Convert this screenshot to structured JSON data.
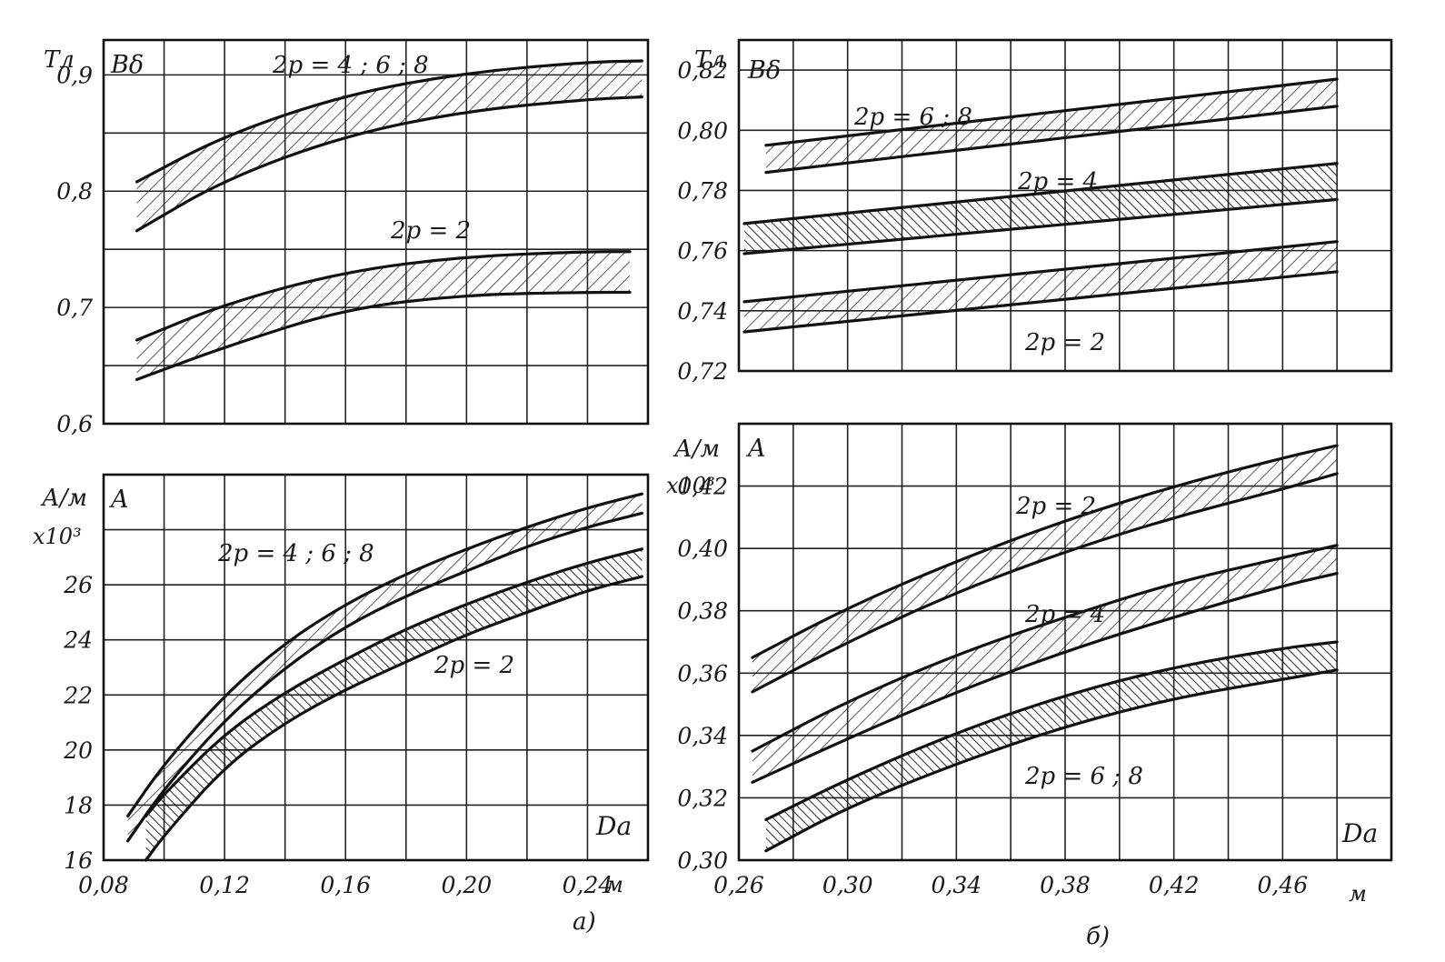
{
  "figure": {
    "label_a": "а)",
    "label_b": "б)"
  },
  "chart_data": [
    {
      "id": "a_top",
      "type": "area",
      "panel": "а",
      "title": "Bδ",
      "ylabel": "Тл",
      "ylim": [
        0.6,
        0.93
      ],
      "xlim": [
        0.08,
        0.26
      ],
      "x_ticks": [
        0.08,
        0.1,
        0.12,
        0.14,
        0.16,
        0.18,
        0.2,
        0.22,
        0.24,
        0.26
      ],
      "y_ticks": [
        0.6,
        0.65,
        0.7,
        0.75,
        0.8,
        0.85,
        0.9
      ],
      "y_tick_labels": [
        "0,6",
        "",
        "0,7",
        "",
        "0,8",
        "",
        "0,9"
      ],
      "x_tick_labels": [],
      "hatch": "diagonal",
      "series": [
        {
          "name": "2p=4;6;8",
          "x": [
            0.091,
            0.12,
            0.16,
            0.2,
            0.24,
            0.258
          ],
          "upper": [
            0.808,
            0.848,
            0.883,
            0.902,
            0.911,
            0.912
          ],
          "lower": [
            0.766,
            0.81,
            0.848,
            0.869,
            0.879,
            0.881
          ]
        },
        {
          "name": "2p=2",
          "x": [
            0.091,
            0.12,
            0.16,
            0.2,
            0.24,
            0.254
          ],
          "upper": [
            0.672,
            0.703,
            0.731,
            0.744,
            0.748,
            0.748
          ],
          "lower": [
            0.638,
            0.666,
            0.699,
            0.711,
            0.713,
            0.713
          ]
        }
      ]
    },
    {
      "id": "a_bottom",
      "type": "area",
      "panel": "а",
      "title": "A",
      "ylabel": "А/м",
      "yunit": "x10³",
      "xlabel": "Da",
      "xunit": "м",
      "ylim": [
        16,
        30
      ],
      "xlim": [
        0.08,
        0.26
      ],
      "x_ticks": [
        0.08,
        0.1,
        0.12,
        0.14,
        0.16,
        0.18,
        0.2,
        0.22,
        0.24,
        0.26
      ],
      "x_tick_labels": [
        "0,08",
        "",
        "0,12",
        "",
        "0,16",
        "",
        "0,20",
        "",
        "0,24",
        ""
      ],
      "y_ticks": [
        16,
        18,
        20,
        22,
        24,
        26,
        28,
        30
      ],
      "y_tick_labels": [
        "16",
        "18",
        "20",
        "22",
        "24",
        "26",
        "",
        ""
      ],
      "series": [
        {
          "name": "2p=4;6;8",
          "hatch": "diagonal",
          "x": [
            0.088,
            0.1,
            0.12,
            0.14,
            0.16,
            0.18,
            0.2,
            0.22,
            0.24,
            0.258
          ],
          "upper": [
            17.6,
            19.5,
            22.0,
            23.9,
            25.3,
            26.4,
            27.3,
            28.1,
            28.8,
            29.3
          ],
          "lower": [
            16.7,
            18.6,
            21.1,
            23.0,
            24.5,
            25.6,
            26.5,
            27.4,
            28.1,
            28.6
          ]
        },
        {
          "name": "2p=2",
          "hatch": "vertical",
          "x": [
            0.094,
            0.1,
            0.12,
            0.14,
            0.16,
            0.18,
            0.2,
            0.22,
            0.24,
            0.258
          ],
          "upper": [
            17.6,
            18.4,
            20.6,
            22.1,
            23.3,
            24.4,
            25.3,
            26.1,
            26.8,
            27.3
          ],
          "lower": [
            16.0,
            16.9,
            19.4,
            21.0,
            22.2,
            23.2,
            24.2,
            25.0,
            25.8,
            26.3
          ]
        }
      ]
    },
    {
      "id": "b_top",
      "type": "area",
      "panel": "б",
      "title": "Bδ",
      "ylabel": "Тл",
      "ylim": [
        0.72,
        0.83
      ],
      "xlim": [
        0.26,
        0.5
      ],
      "x_ticks": [
        0.26,
        0.28,
        0.3,
        0.32,
        0.34,
        0.36,
        0.38,
        0.4,
        0.42,
        0.44,
        0.46,
        0.48,
        0.5
      ],
      "x_tick_labels": [],
      "y_ticks": [
        0.72,
        0.74,
        0.76,
        0.78,
        0.8,
        0.82
      ],
      "y_tick_labels": [
        "0,72",
        "0,74",
        "0,76",
        "0,78",
        "0,80",
        "0,82"
      ],
      "series": [
        {
          "name": "2p=6;8",
          "hatch": "diagonal",
          "x": [
            0.27,
            0.48
          ],
          "upper": [
            0.795,
            0.817
          ],
          "lower": [
            0.786,
            0.808
          ]
        },
        {
          "name": "2p=4",
          "hatch": "vertical",
          "x": [
            0.262,
            0.48
          ],
          "upper": [
            0.769,
            0.789
          ],
          "lower": [
            0.759,
            0.777
          ]
        },
        {
          "name": "2p=2",
          "hatch": "diagonal",
          "x": [
            0.262,
            0.48
          ],
          "upper": [
            0.743,
            0.763
          ],
          "lower": [
            0.733,
            0.753
          ]
        }
      ]
    },
    {
      "id": "b_bottom",
      "type": "area",
      "panel": "б",
      "title": "A",
      "ylabel": "А/м",
      "yunit": "x10³",
      "xlabel": "Da",
      "xunit": "м",
      "ylim": [
        0.3,
        0.44
      ],
      "xlim": [
        0.26,
        0.5
      ],
      "x_ticks": [
        0.26,
        0.28,
        0.3,
        0.32,
        0.34,
        0.36,
        0.38,
        0.4,
        0.42,
        0.44,
        0.46,
        0.48,
        0.5
      ],
      "x_tick_labels": [
        "0,26",
        "",
        "0,30",
        "",
        "0,34",
        "",
        "0,38",
        "",
        "0,42",
        "",
        "0,46",
        "",
        ""
      ],
      "y_ticks": [
        0.3,
        0.32,
        0.34,
        0.36,
        0.38,
        0.4,
        0.42,
        0.44
      ],
      "y_tick_labels": [
        "0,30",
        "0,32",
        "0,34",
        "0,36",
        "0,38",
        "0,40",
        "0,42",
        ""
      ],
      "series": [
        {
          "name": "2p=2",
          "hatch": "diagonal",
          "x": [
            0.265,
            0.3,
            0.34,
            0.38,
            0.42,
            0.46,
            0.48
          ],
          "upper": [
            0.365,
            0.381,
            0.396,
            0.409,
            0.42,
            0.429,
            0.433
          ],
          "lower": [
            0.354,
            0.37,
            0.386,
            0.399,
            0.41,
            0.419,
            0.424
          ]
        },
        {
          "name": "2p=4",
          "hatch": "diagonal",
          "x": [
            0.265,
            0.3,
            0.34,
            0.38,
            0.42,
            0.46,
            0.48
          ],
          "upper": [
            0.335,
            0.351,
            0.366,
            0.378,
            0.389,
            0.397,
            0.401
          ],
          "lower": [
            0.325,
            0.339,
            0.354,
            0.367,
            0.378,
            0.388,
            0.392
          ]
        },
        {
          "name": "2p=6;8",
          "hatch": "vertical",
          "x": [
            0.27,
            0.3,
            0.34,
            0.38,
            0.42,
            0.46,
            0.48
          ],
          "upper": [
            0.313,
            0.326,
            0.341,
            0.353,
            0.362,
            0.368,
            0.37
          ],
          "lower": [
            0.303,
            0.317,
            0.331,
            0.343,
            0.352,
            0.358,
            0.361
          ]
        }
      ]
    }
  ]
}
